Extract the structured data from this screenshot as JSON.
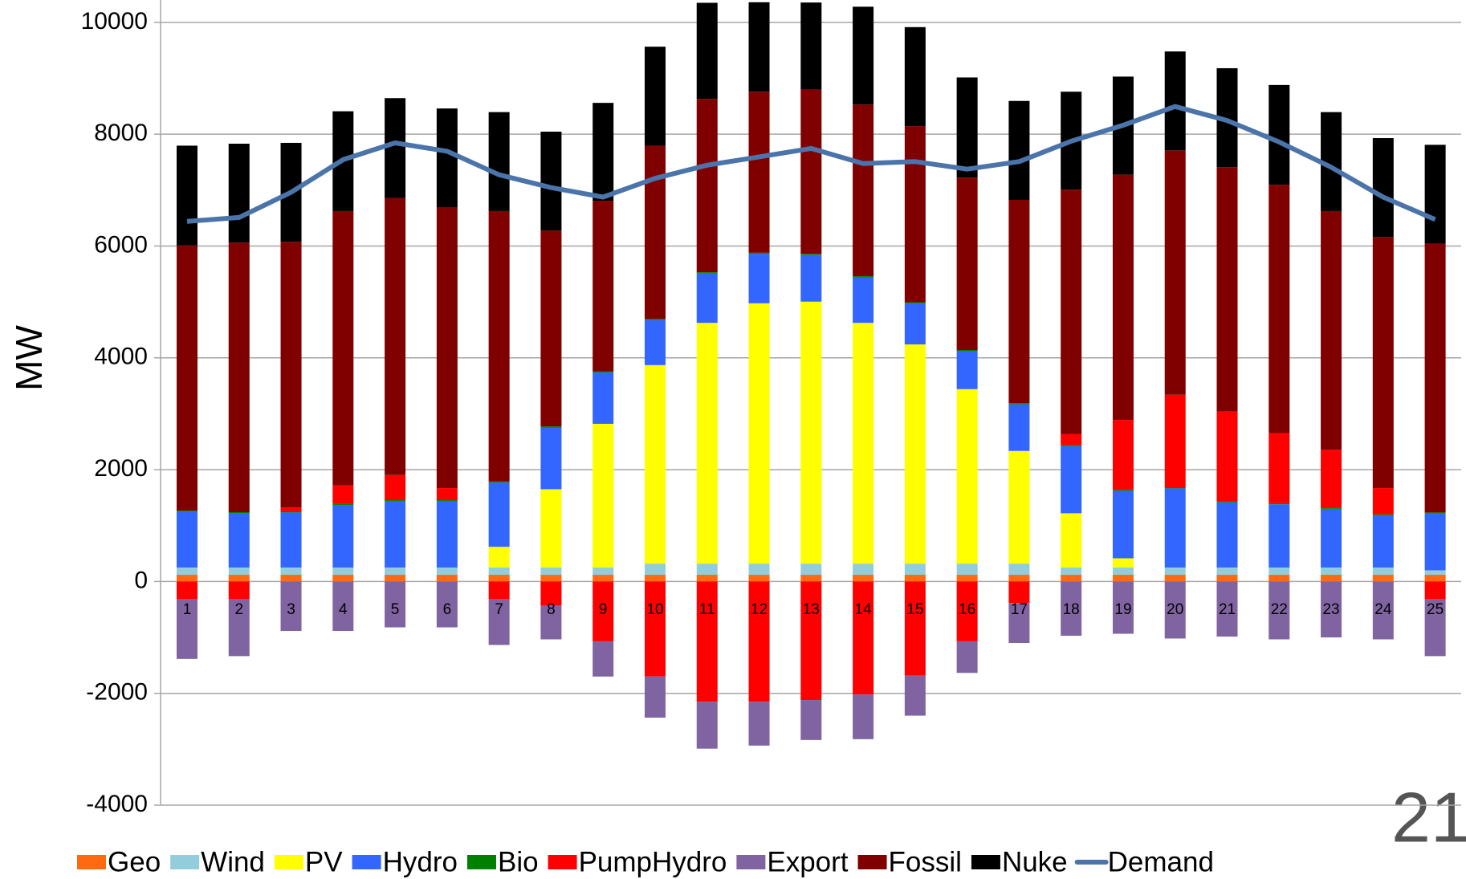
{
  "chart_data": {
    "type": "bar",
    "stacked": true,
    "y_label": "MW",
    "page_number": "21",
    "categories": [
      "1",
      "2",
      "3",
      "4",
      "5",
      "6",
      "7",
      "8",
      "9",
      "10",
      "11",
      "12",
      "13",
      "14",
      "15",
      "16",
      "17",
      "18",
      "19",
      "20",
      "21",
      "22",
      "23",
      "24",
      "25"
    ],
    "ylim": [
      -4000,
      10400
    ],
    "yticks": [
      -4000,
      -2000,
      0,
      2000,
      4000,
      6000,
      8000,
      10000
    ],
    "grid": true,
    "legend": "bottom",
    "series": [
      {
        "name": "Geo",
        "color": "#ff6a10",
        "values": [
          120,
          120,
          120,
          120,
          120,
          120,
          120,
          120,
          120,
          120,
          120,
          120,
          120,
          120,
          120,
          120,
          120,
          120,
          120,
          120,
          120,
          120,
          120,
          120,
          120
        ]
      },
      {
        "name": "Wind",
        "color": "#92cddc",
        "values": [
          130,
          130,
          130,
          130,
          130,
          130,
          130,
          130,
          130,
          200,
          200,
          200,
          200,
          200,
          200,
          200,
          200,
          130,
          130,
          130,
          130,
          130,
          130,
          130,
          80
        ]
      },
      {
        "name": "PV",
        "color": "#ffff00",
        "values": [
          0,
          0,
          0,
          0,
          0,
          0,
          370,
          1400,
          2570,
          3550,
          4305,
          4655,
          4685,
          4305,
          3920,
          3120,
          2015,
          970,
          165,
          0,
          0,
          0,
          0,
          0,
          0
        ]
      },
      {
        "name": "Hydro",
        "color": "#3366ff",
        "values": [
          1000,
          970,
          985,
          1120,
          1185,
          1185,
          1150,
          1105,
          920,
          805,
          885,
          885,
          835,
          815,
          735,
          680,
          835,
          1200,
          1205,
          1415,
          1165,
          1130,
          1050,
          930,
          1015
        ]
      },
      {
        "name": "Bio",
        "color": "#008000",
        "values": [
          20,
          20,
          20,
          20,
          20,
          20,
          20,
          20,
          20,
          20,
          20,
          20,
          20,
          20,
          20,
          20,
          20,
          20,
          20,
          20,
          20,
          20,
          20,
          20,
          20
        ]
      },
      {
        "name": "PumpHydro",
        "color": "#ff0000",
        "values": [
          -320,
          -320,
          70,
          330,
          450,
          215,
          -320,
          -435,
          -1070,
          -1700,
          -2150,
          -2150,
          -2120,
          -2020,
          -1685,
          -1070,
          -385,
          200,
          1250,
          1655,
          1605,
          1255,
          1035,
          470,
          -320
        ]
      },
      {
        "name": "Export",
        "color": "#8064a2",
        "values": [
          -1065,
          -1015,
          -885,
          -885,
          -820,
          -820,
          -815,
          -600,
          -630,
          -735,
          -840,
          -785,
          -715,
          -800,
          -715,
          -565,
          -715,
          -970,
          -935,
          -1020,
          -985,
          -1035,
          -1000,
          -1035,
          -1015
        ]
      },
      {
        "name": "Fossil",
        "color": "#800000",
        "values": [
          4740,
          4820,
          4750,
          4905,
          4955,
          5020,
          4835,
          3500,
          3050,
          3100,
          3100,
          2880,
          2935,
          3070,
          3150,
          3085,
          3635,
          4370,
          4385,
          4370,
          4370,
          4440,
          4270,
          4490,
          4805
        ]
      },
      {
        "name": "Nuke",
        "color": "#000000",
        "values": [
          1785,
          1770,
          1770,
          1785,
          1785,
          1770,
          1770,
          1770,
          1750,
          1770,
          1720,
          1600,
          1560,
          1750,
          1770,
          1790,
          1770,
          1750,
          1755,
          1770,
          1770,
          1785,
          1770,
          1770,
          1770
        ]
      },
      {
        "name": "Demand",
        "color": "#4a74aa",
        "type": "line",
        "values": [
          6440,
          6510,
          6960,
          7545,
          7845,
          7695,
          7275,
          7045,
          6875,
          7210,
          7445,
          7595,
          7745,
          7475,
          7510,
          7375,
          7510,
          7875,
          8160,
          8495,
          8245,
          7860,
          7410,
          6875,
          6475
        ]
      }
    ]
  }
}
